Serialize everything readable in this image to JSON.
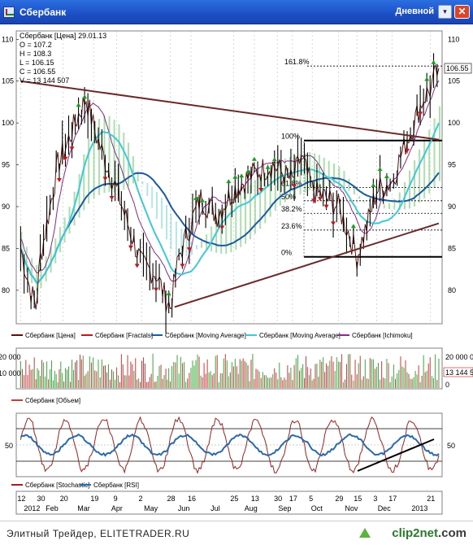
{
  "window": {
    "title": "Сбербанк",
    "period": "Дневной",
    "dropdown_glyph": "▾",
    "close_glyph": "✕"
  },
  "colors": {
    "price": "#5a1010",
    "fractal_up": "#1aa01a",
    "fractal_down": "#c01818",
    "ma_slow": "#1a5aa0",
    "ma_fast": "#40c8d8",
    "ichimoku": "#8a2a8a",
    "cloud_green": "#44b844",
    "cloud_cyan": "#58c8c8",
    "volume_up": "#3aa83a",
    "volume_down": "#c83a3a",
    "stochastic": "#a02020",
    "rsi": "#2a6aa8"
  },
  "info_box": {
    "line1": "Сбербанк [Цена] 29.01.13",
    "line2": "O = 107.2",
    "line3": "H = 108.3",
    "line4": "L = 106.15",
    "line5": "C = 106.55",
    "line6": "V = 13 144 507"
  },
  "price_axis": {
    "ticks": [
      "110",
      "105",
      "100",
      "95",
      "90",
      "85",
      "80"
    ],
    "last_price": "106.55"
  },
  "fib_labels": {
    "f1618": "161.8%",
    "f100": "100%",
    "f618": "61.8%",
    "f50": "50%",
    "f382": "38.2%",
    "f236": "23.6%",
    "f0": "0%"
  },
  "price_legend": {
    "price": "Сбербанк [Цена]",
    "fractals": "Сбербанк [Fractals]",
    "ma1": "Сбербанк [Moving Average]",
    "ma2": "Сбербанк [Moving Average]",
    "ichimoku": "Сбербанк [Ichimoku]"
  },
  "volume_axis": {
    "left_top": "20 000",
    "left_mid": "10 000",
    "right_top": "20 000 0",
    "right_mid": "13 144 5",
    "right_zero": "0"
  },
  "volume_legend": "Сбербанк [Объем]",
  "osc_axis": {
    "left": "50",
    "right": "50"
  },
  "osc_legend": {
    "stochastic": "Сбербанк [Stochastic]",
    "rsi": "Сбербанк [RSI]"
  },
  "time_axis": {
    "days": [
      "12",
      "30",
      "20",
      "19",
      "9",
      "2",
      "28",
      "16",
      "25",
      "13",
      "30",
      "17",
      "5",
      "29",
      "15",
      "3",
      "17",
      "21"
    ],
    "months": [
      "2012",
      "Feb",
      "Mar",
      "Apr",
      "May",
      "Jun",
      "Jul",
      "Aug",
      "Sep",
      "Oct",
      "Nov",
      "Dec",
      "2013"
    ]
  },
  "footer": {
    "source": "Элитный Трейдер, ELITETRADER.RU",
    "brand": "clip2net",
    "brand_suffix": ".com"
  },
  "chart_data": {
    "type": "line",
    "title": "Сбербанк [Цена] 29.01.13",
    "ylim": [
      76,
      111
    ],
    "last": {
      "open": 107.2,
      "high": 108.3,
      "low": 106.15,
      "close": 106.55,
      "volume": 13144507
    },
    "price_series": [
      {
        "x": "2012-01-12",
        "close": 85
      },
      {
        "x": "2012-01-20",
        "close": 80.5
      },
      {
        "x": "2012-01-26",
        "close": 78
      },
      {
        "x": "2012-01-30",
        "close": 84
      },
      {
        "x": "2012-02-08",
        "close": 90
      },
      {
        "x": "2012-02-15",
        "close": 95
      },
      {
        "x": "2012-02-22",
        "close": 97
      },
      {
        "x": "2012-03-05",
        "close": 101
      },
      {
        "x": "2012-03-12",
        "close": 103
      },
      {
        "x": "2012-03-20",
        "close": 99
      },
      {
        "x": "2012-03-28",
        "close": 96
      },
      {
        "x": "2012-04-09",
        "close": 92
      },
      {
        "x": "2012-04-19",
        "close": 88
      },
      {
        "x": "2012-05-02",
        "close": 83
      },
      {
        "x": "2012-05-15",
        "close": 82
      },
      {
        "x": "2012-05-24",
        "close": 79
      },
      {
        "x": "2012-05-28",
        "close": 78
      },
      {
        "x": "2012-06-05",
        "close": 84
      },
      {
        "x": "2012-06-16",
        "close": 88
      },
      {
        "x": "2012-06-25",
        "close": 91
      },
      {
        "x": "2012-07-10",
        "close": 89
      },
      {
        "x": "2012-07-25",
        "close": 92
      },
      {
        "x": "2012-08-13",
        "close": 94
      },
      {
        "x": "2012-08-30",
        "close": 95
      },
      {
        "x": "2012-09-17",
        "close": 93
      },
      {
        "x": "2012-09-25",
        "close": 96
      },
      {
        "x": "2012-10-05",
        "close": 92
      },
      {
        "x": "2012-10-18",
        "close": 91
      },
      {
        "x": "2012-10-29",
        "close": 90
      },
      {
        "x": "2012-11-07",
        "close": 87
      },
      {
        "x": "2012-11-15",
        "close": 84
      },
      {
        "x": "2012-11-27",
        "close": 89
      },
      {
        "x": "2012-12-03",
        "close": 92
      },
      {
        "x": "2012-12-17",
        "close": 93
      },
      {
        "x": "2012-12-25",
        "close": 96
      },
      {
        "x": "2013-01-09",
        "close": 101
      },
      {
        "x": "2013-01-15",
        "close": 103
      },
      {
        "x": "2013-01-21",
        "close": 104
      },
      {
        "x": "2013-01-29",
        "close": 106.55
      }
    ],
    "fibonacci": [
      {
        "level": "0%",
        "price": 84
      },
      {
        "level": "23.6%",
        "price": 87.2
      },
      {
        "level": "38.2%",
        "price": 89.2
      },
      {
        "level": "50%",
        "price": 90.7
      },
      {
        "level": "61.8%",
        "price": 92.3
      },
      {
        "level": "100%",
        "price": 97.9
      },
      {
        "level": "161.8%",
        "price": 106.8
      }
    ],
    "trendlines": [
      {
        "name": "resistance",
        "from": {
          "x": "2012-01-12",
          "y": 105
        },
        "to": {
          "x": "2013-01-29",
          "y": 98
        }
      },
      {
        "name": "support",
        "from": {
          "x": "2012-06-01",
          "y": 78
        },
        "to": {
          "x": "2013-01-29",
          "y": 88
        }
      }
    ],
    "volume_ylim": [
      0,
      20000000
    ],
    "oscillator_level": 50,
    "grid": true
  }
}
